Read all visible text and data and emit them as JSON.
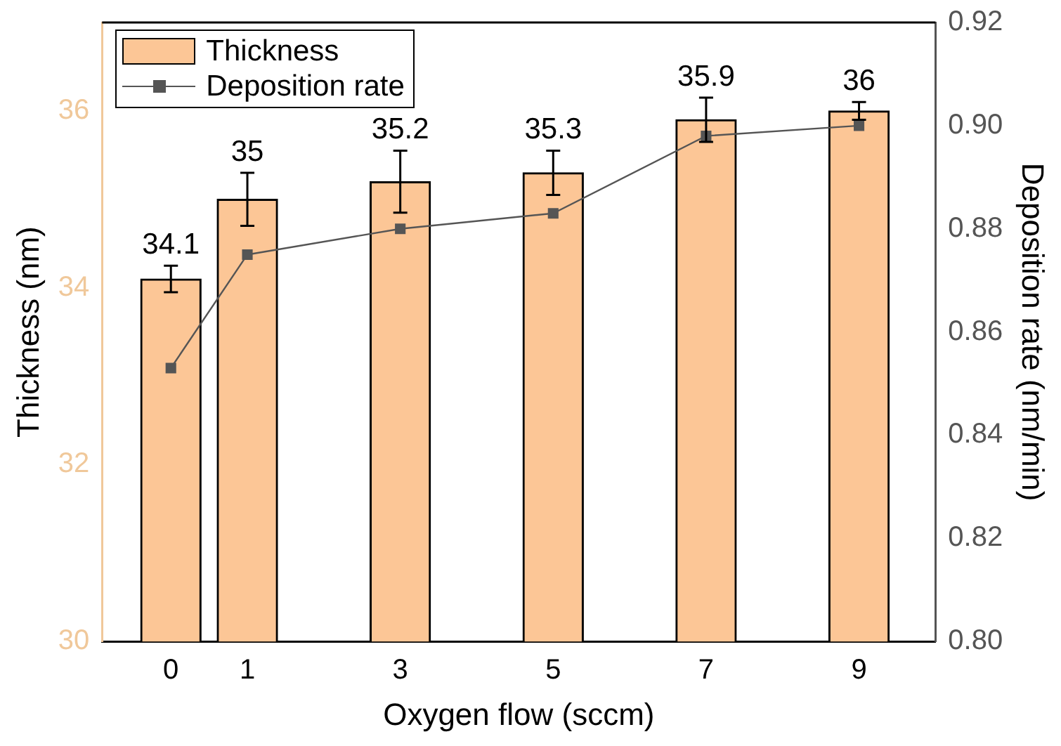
{
  "chart_data": {
    "type": "bar",
    "xlabel": "Oxygen flow (sccm)",
    "ylabel": "Thickness (nm)",
    "y2label": "Deposition rate (nm/min)",
    "x": [
      0,
      1,
      3,
      5,
      7,
      9
    ],
    "series": [
      {
        "name": "Thickness",
        "color": "#fcc696",
        "values": [
          34.1,
          35,
          35.2,
          35.3,
          35.9,
          36
        ],
        "errors": [
          0.15,
          0.3,
          0.35,
          0.25,
          0.25,
          0.1
        ],
        "value_labels": [
          "34.1",
          "35",
          "35.2",
          "35.3",
          "35.9",
          "36"
        ]
      },
      {
        "type": "line",
        "name": "Deposition rate",
        "color": "#555555",
        "axis": "y2",
        "values": [
          0.853,
          0.875,
          0.88,
          0.883,
          0.898,
          0.9
        ],
        "marker": "square"
      }
    ],
    "xlim": [
      -0.9,
      10
    ],
    "xticks": [
      0,
      1,
      3,
      5,
      7,
      9
    ],
    "ylim": [
      30,
      37
    ],
    "yticks": [
      30,
      32,
      34,
      36
    ],
    "y2lim": [
      0.8,
      0.92
    ],
    "y2ticks": [
      {
        "value": 0.8,
        "label": "0.80"
      },
      0.82,
      0.84,
      0.86,
      0.88,
      {
        "value": 0.9,
        "label": "0.90"
      },
      0.92
    ],
    "grid": false,
    "legend": "top left"
  }
}
